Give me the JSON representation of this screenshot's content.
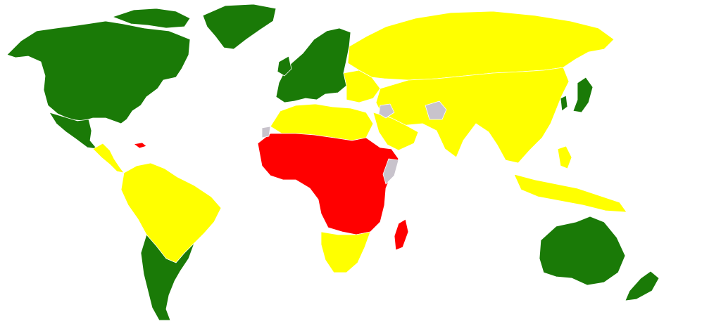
{
  "map": {
    "projection": "world",
    "background": "#ffffff",
    "border_color": "#ffffff",
    "categories": [
      {
        "key": "high",
        "color": "#1a7a07"
      },
      {
        "key": "medium",
        "color": "#ffff00"
      },
      {
        "key": "low",
        "color": "#ff0000"
      },
      {
        "key": "no-data",
        "color": "#c8c3cc"
      }
    ],
    "regions": [
      {
        "id": "north-america",
        "category": "high"
      },
      {
        "id": "greenland",
        "category": "high"
      },
      {
        "id": "mexico",
        "category": "high"
      },
      {
        "id": "central-america",
        "category": "medium"
      },
      {
        "id": "caribbean",
        "category": "low"
      },
      {
        "id": "south-america-north",
        "category": "medium"
      },
      {
        "id": "southern-cone",
        "category": "high"
      },
      {
        "id": "europe",
        "category": "high"
      },
      {
        "id": "eastern-europe",
        "category": "medium"
      },
      {
        "id": "russia",
        "category": "medium"
      },
      {
        "id": "asia",
        "category": "medium"
      },
      {
        "id": "japan",
        "category": "high"
      },
      {
        "id": "korea",
        "category": "high"
      },
      {
        "id": "southeast-asia",
        "category": "medium"
      },
      {
        "id": "north-africa",
        "category": "medium"
      },
      {
        "id": "sub-saharan-africa",
        "category": "low"
      },
      {
        "id": "southern-africa",
        "category": "medium"
      },
      {
        "id": "madagascar",
        "category": "low"
      },
      {
        "id": "australia",
        "category": "high"
      },
      {
        "id": "new-zealand",
        "category": "high"
      },
      {
        "id": "no-data-areas",
        "category": "no-data"
      }
    ]
  }
}
